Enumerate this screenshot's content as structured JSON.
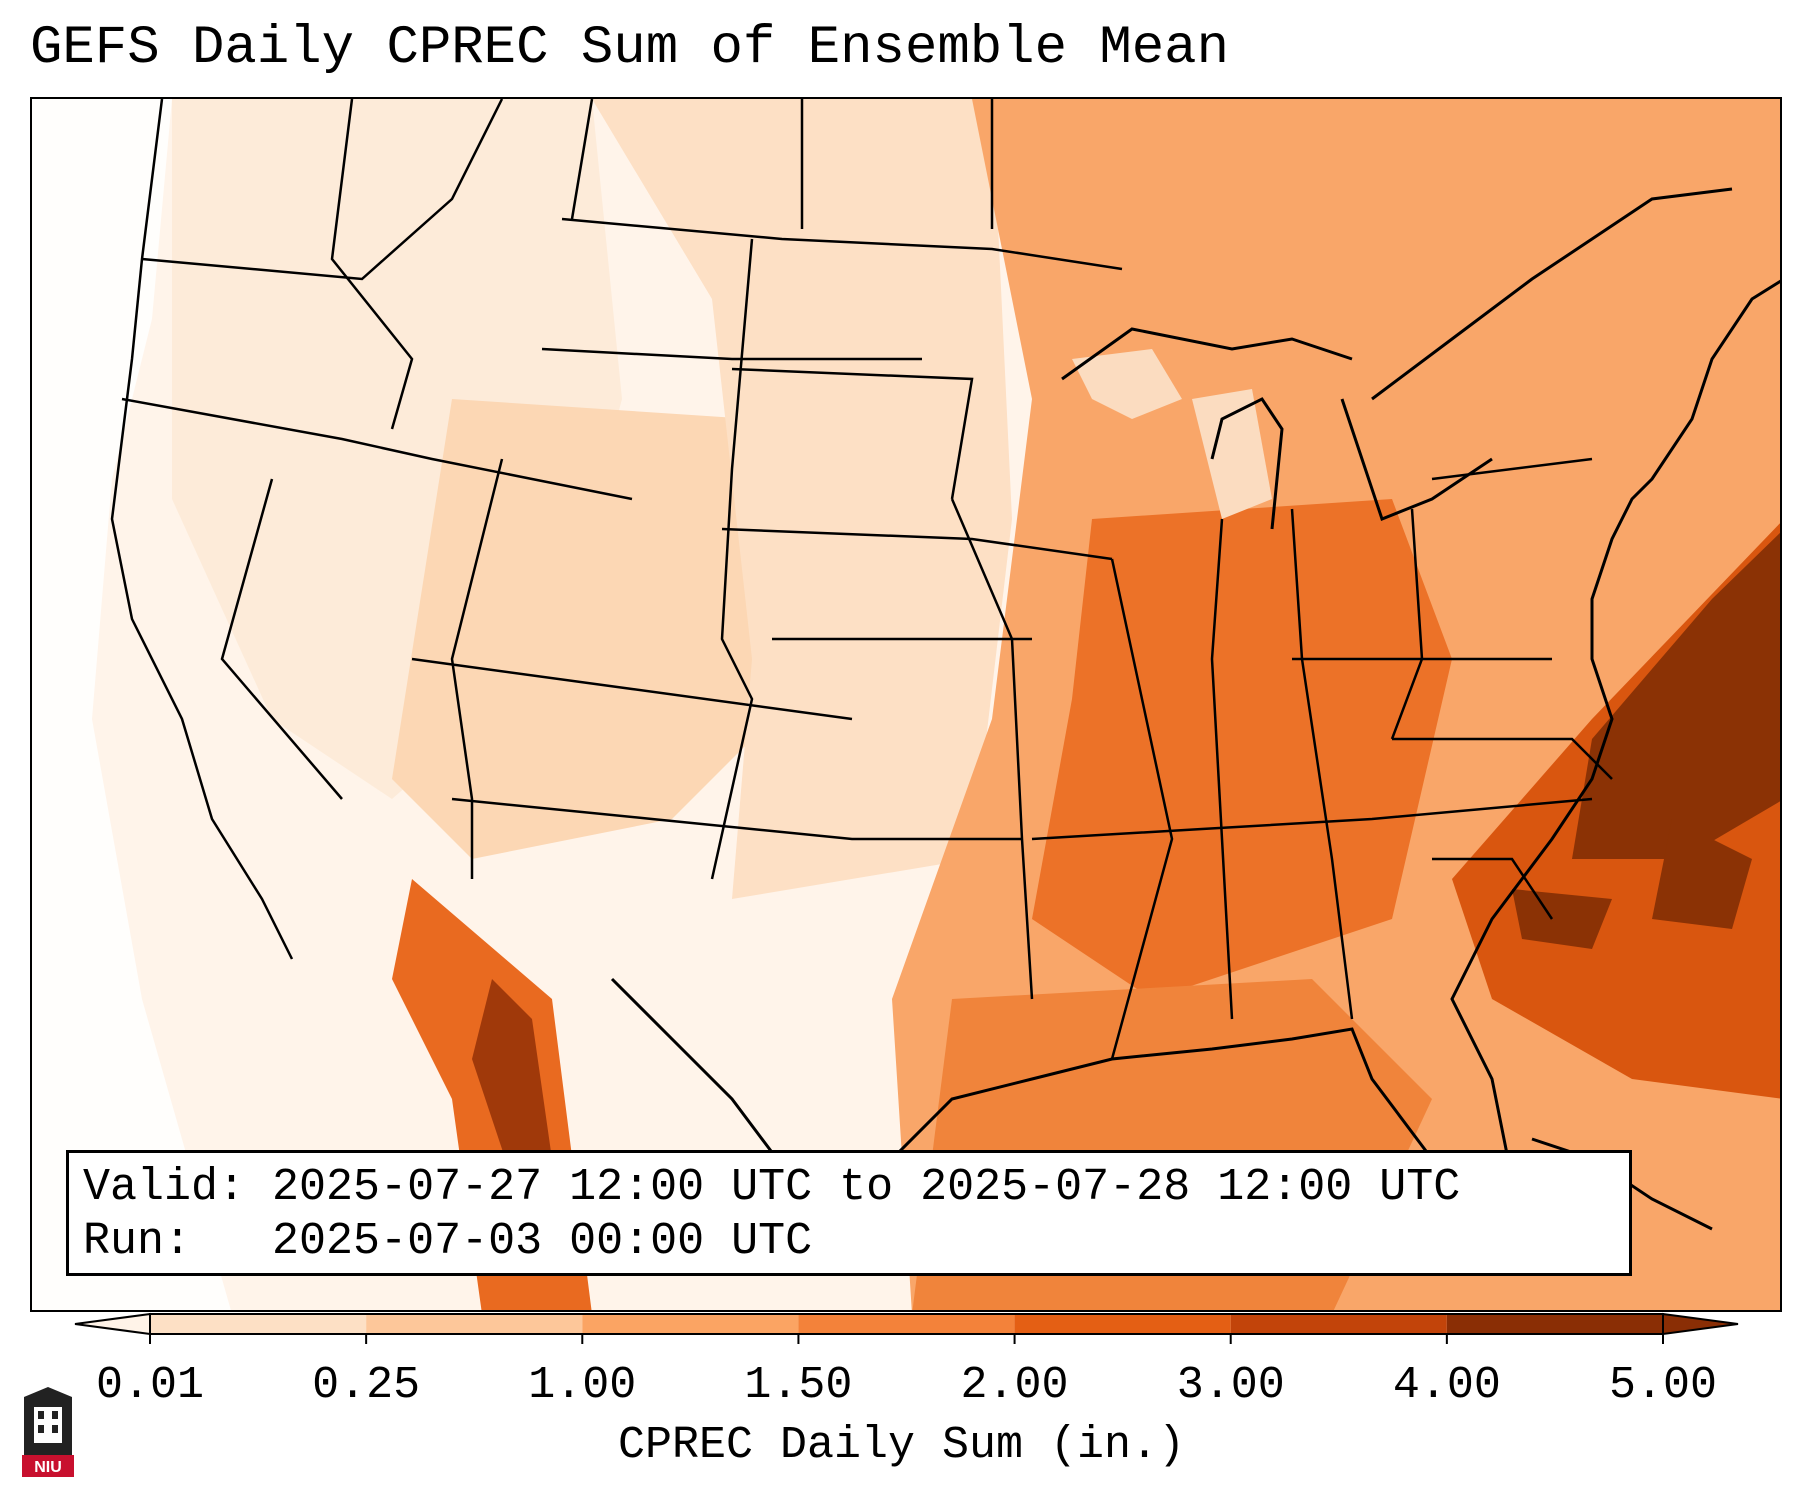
{
  "title": "GEFS Daily CPREC Sum of Ensemble Mean",
  "info": {
    "valid_label": "Valid:",
    "valid_value": "2025-07-27 12:00 UTC to 2025-07-28 12:00 UTC",
    "run_label": "Run:",
    "run_value": "2025-07-03 00:00 UTC"
  },
  "colorbar": {
    "label": "CPREC Daily Sum (in.)",
    "ticks": [
      "0.01",
      "0.25",
      "1.00",
      "1.50",
      "2.00",
      "3.00",
      "4.00",
      "5.00"
    ],
    "colors": [
      "#fff3e8",
      "#fde0c5",
      "#fdc79a",
      "#fba463",
      "#f3823a",
      "#e45f14",
      "#c2440a",
      "#8a2e05"
    ],
    "extend": "both"
  },
  "logo": {
    "text": "NIU",
    "color": "#c8102e"
  },
  "palette": {
    "water": "#ffffff",
    "low": "#fde6cf",
    "mid": "#fbb07a",
    "high": "#ee7a2e",
    "max": "#8b3205"
  }
}
